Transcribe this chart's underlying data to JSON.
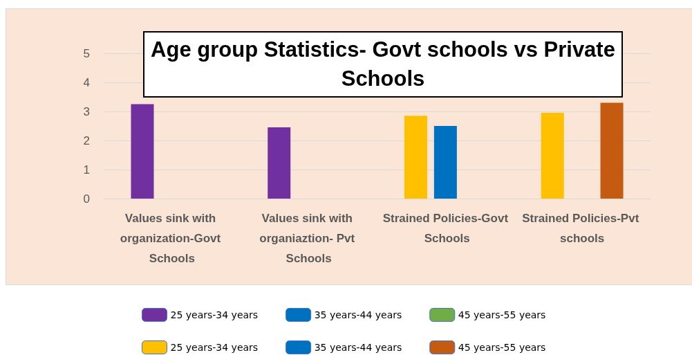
{
  "chart_data": {
    "type": "bar",
    "title": "Age group Statistics- Govt schools vs Private Schools",
    "categories": [
      "Values sink with organization-Govt Schools",
      "Values sink with organiaztion- Pvt Schools",
      "Strained Policies-Govt Schools",
      "Strained Policies-Pvt schools"
    ],
    "series": [
      {
        "name": "25 years-34 years",
        "color": "#7030a0",
        "values": [
          3.25,
          2.45,
          null,
          null
        ]
      },
      {
        "name": "35 years-44 years",
        "color": "#0070c0",
        "values": [
          null,
          null,
          null,
          null
        ]
      },
      {
        "name": "45 years-55 years",
        "color": "#70ad47",
        "values": [
          null,
          null,
          null,
          null
        ]
      },
      {
        "name": "25 years-34 years",
        "color": "#ffc000",
        "values": [
          null,
          null,
          2.85,
          2.95
        ]
      },
      {
        "name": "35 years-44 years",
        "color": "#0070c0",
        "values": [
          null,
          null,
          2.5,
          null
        ]
      },
      {
        "name": "45 years-55 years",
        "color": "#c55a11",
        "values": [
          null,
          null,
          null,
          3.3
        ]
      }
    ],
    "ylim": [
      0,
      5
    ],
    "yticks": [
      0,
      1,
      2,
      3,
      4,
      5
    ],
    "grid": "y",
    "legend": "bottom"
  }
}
